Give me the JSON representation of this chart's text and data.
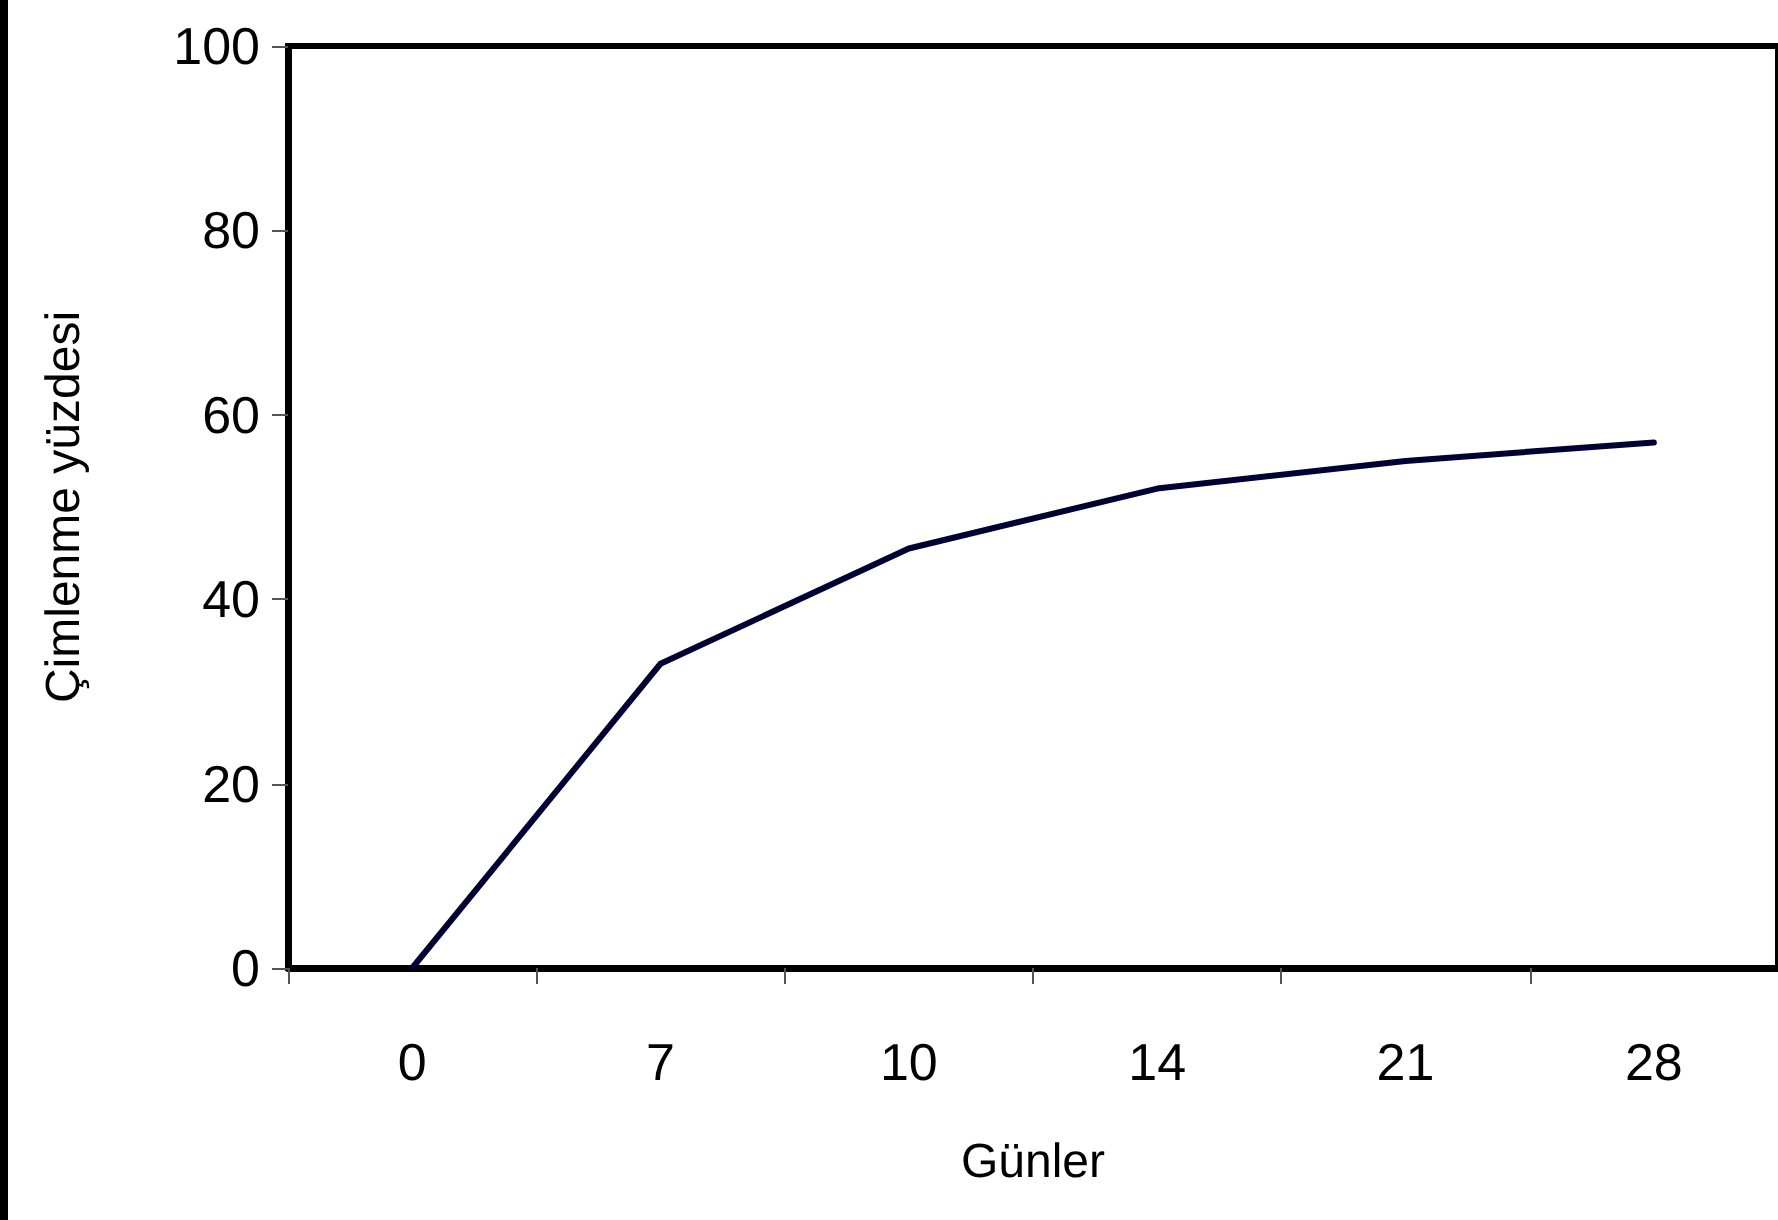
{
  "chart_data": {
    "type": "line",
    "xlabel": "Günler",
    "ylabel": "Çimlenme yüzdesi",
    "categories": [
      "0",
      "7",
      "10",
      "14",
      "21",
      "28"
    ],
    "series": [
      {
        "color": "#000033",
        "values": [
          0,
          33,
          45.5,
          52,
          55,
          57
        ]
      }
    ],
    "ylim": [
      0,
      100
    ],
    "yticks": [
      0,
      20,
      40,
      60,
      80,
      100
    ],
    "marker": "none",
    "line_style": "solid"
  }
}
